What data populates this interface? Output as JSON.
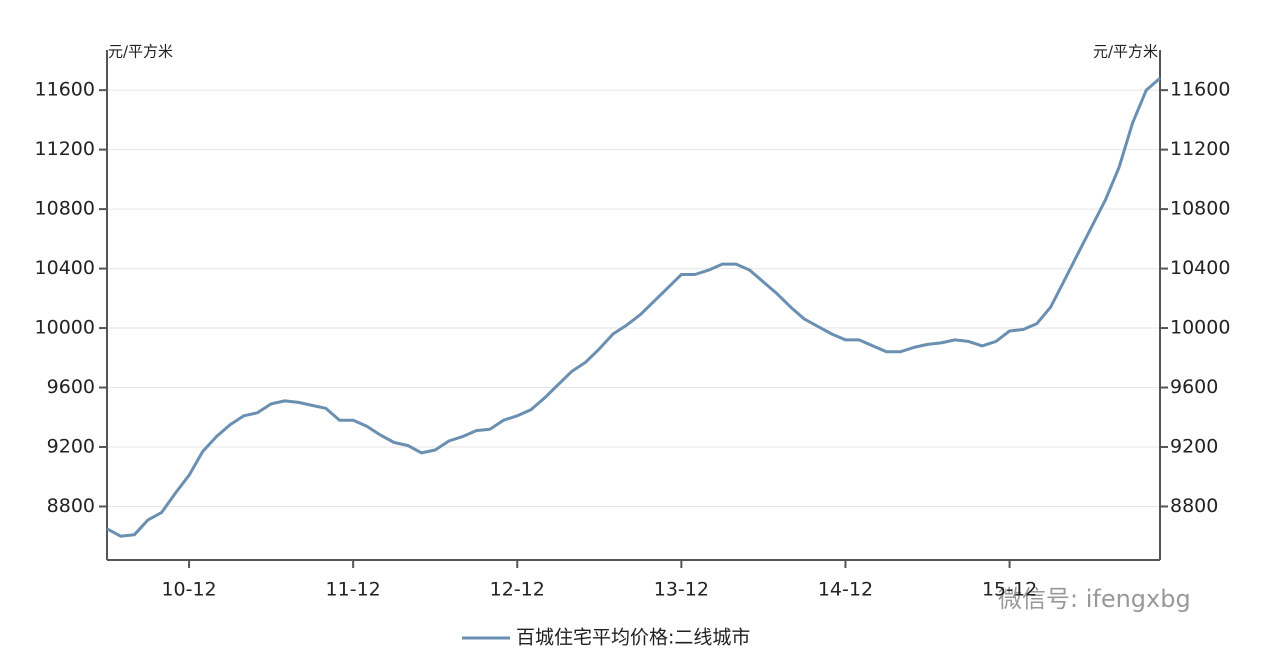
{
  "chart_data": {
    "type": "line",
    "y_unit": "元/平方米",
    "y2_unit": "元/平方米",
    "categories": [
      null,
      null,
      null,
      null,
      null,
      null,
      "10-12",
      null,
      null,
      null,
      null,
      null,
      null,
      null,
      null,
      null,
      null,
      null,
      "11-12",
      null,
      null,
      null,
      null,
      null,
      null,
      null,
      null,
      null,
      null,
      null,
      "12-12",
      null,
      null,
      null,
      null,
      null,
      null,
      null,
      null,
      null,
      null,
      null,
      "13-12",
      null,
      null,
      null,
      null,
      null,
      null,
      null,
      null,
      null,
      null,
      null,
      "14-12",
      null,
      null,
      null,
      null,
      null,
      null,
      null,
      null,
      null,
      null,
      null,
      "15-12",
      null,
      null,
      null,
      null,
      null,
      null,
      null,
      null,
      null,
      null,
      null
    ],
    "series": [
      {
        "name": "百城住宅平均价格:二线城市",
        "color": "#6a8fb0",
        "values": [
          8650,
          8600,
          8610,
          8710,
          8760,
          8890,
          9010,
          9170,
          9270,
          9350,
          9410,
          9430,
          9490,
          9510,
          9500,
          9480,
          9460,
          9380,
          9380,
          9340,
          9280,
          9230,
          9210,
          9160,
          9180,
          9240,
          9270,
          9310,
          9320,
          9380,
          9410,
          9450,
          9530,
          9620,
          9710,
          9770,
          9860,
          9960,
          10020,
          10090,
          10180,
          10270,
          10360,
          10360,
          10390,
          10430,
          10430,
          10390,
          10310,
          10230,
          10140,
          10060,
          10010,
          9960,
          9920,
          9920,
          9880,
          9840,
          9840,
          9870,
          9890,
          9900,
          9920,
          9910,
          9880,
          9910,
          9980,
          9990,
          10030,
          10140,
          10320,
          10500,
          10680,
          10860,
          11080,
          11380,
          11600,
          11680
        ]
      }
    ],
    "ylim": [
      8440,
      11870
    ],
    "yticks": [
      8800,
      9200,
      9600,
      10000,
      10400,
      10800,
      11200,
      11600
    ],
    "y2lim": [
      8440,
      11870
    ],
    "y2ticks": [
      8800,
      9200,
      9600,
      10000,
      10400,
      10800,
      11200,
      11600
    ],
    "grid": true,
    "legend": "bottom",
    "watermark": "微信号: ifengxbg"
  }
}
